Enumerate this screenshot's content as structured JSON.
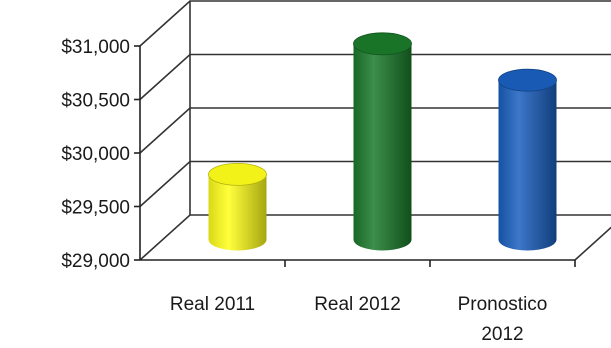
{
  "chart_data": {
    "type": "bar",
    "style": "3d-cylinder",
    "categories": [
      {
        "lines": [
          "Real 2011"
        ]
      },
      {
        "lines": [
          "Real 2012"
        ]
      },
      {
        "lines": [
          "Pronostico",
          "2012"
        ]
      }
    ],
    "values": [
      29590,
      30810,
      30470
    ],
    "colors": [
      "#ffff1a",
      "#1a7a2a",
      "#1a5fbf"
    ],
    "yticks": [
      "$29,000",
      "$29,500",
      "$30,000",
      "$30,500",
      "$31,000"
    ],
    "ylim": [
      29000,
      31000
    ],
    "grid": true,
    "legend": "none"
  }
}
